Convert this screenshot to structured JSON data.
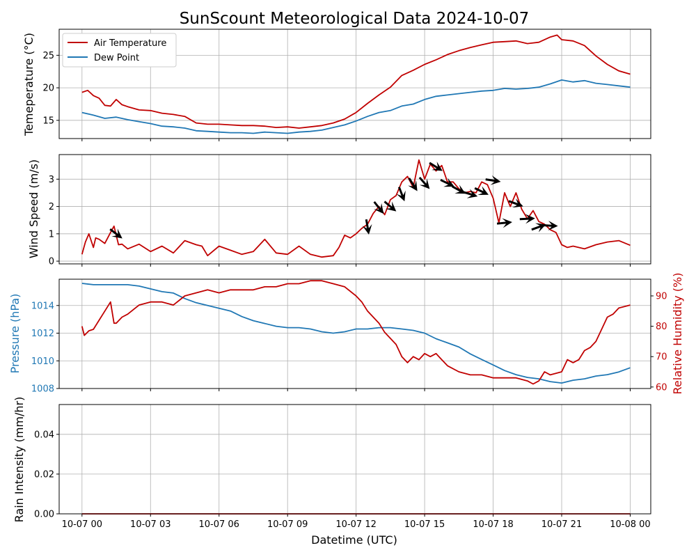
{
  "figure": {
    "title": "SunScount Meteorological Data 2024-10-07",
    "xlabel": "Datetime (UTC)",
    "xtick_labels": [
      "10-07 00",
      "10-07 03",
      "10-07 06",
      "10-07 09",
      "10-07 12",
      "10-07 15",
      "10-07 18",
      "10-07 21",
      "10-08 00"
    ]
  },
  "colors": {
    "air_temp": "#c00000",
    "dew_point": "#1f77b4",
    "wind": "#c00000",
    "pressure": "#1f77b4",
    "humidity": "#c00000",
    "rain": "#c00000",
    "arrow": "#000000",
    "grid": "#b0b0b0"
  },
  "chart_data": [
    {
      "type": "line",
      "ylabel": "Temeperature (°C)",
      "ylim": [
        12.2,
        29
      ],
      "yticks": [
        15,
        20,
        25
      ],
      "grid": true,
      "legend": "upper-left",
      "xlim_hours": [
        -1.0,
        24.9
      ],
      "series": [
        {
          "name": "Air Temperature",
          "x": [
            0,
            0.25,
            0.5,
            0.75,
            1,
            1.25,
            1.5,
            1.75,
            2,
            2.5,
            3,
            3.5,
            4,
            4.5,
            5,
            5.5,
            6,
            6.5,
            7,
            7.5,
            8,
            8.5,
            9,
            9.5,
            10,
            10.5,
            11,
            11.5,
            12,
            12.5,
            13,
            13.5,
            14,
            14.5,
            15,
            15.5,
            16,
            16.5,
            17,
            17.5,
            18,
            18.5,
            19,
            19.5,
            20,
            20.5,
            20.8,
            21,
            21.5,
            22,
            22.5,
            23,
            23.5,
            24
          ],
          "y": [
            19.3,
            19.6,
            18.8,
            18.4,
            17.3,
            17.2,
            18.2,
            17.4,
            17.1,
            16.6,
            16.5,
            16.1,
            15.9,
            15.6,
            14.6,
            14.4,
            14.4,
            14.3,
            14.2,
            14.2,
            14.1,
            13.9,
            14.0,
            13.8,
            14.0,
            14.2,
            14.6,
            15.2,
            16.2,
            17.6,
            18.9,
            20.1,
            21.9,
            22.7,
            23.6,
            24.3,
            25.1,
            25.7,
            26.2,
            26.6,
            27.0,
            27.1,
            27.2,
            26.8,
            27.0,
            27.8,
            28.1,
            27.4,
            27.2,
            26.5,
            24.9,
            23.6,
            22.6,
            22.1
          ]
        },
        {
          "name": "Dew Point",
          "x": [
            0,
            0.5,
            1,
            1.5,
            2,
            2.5,
            3,
            3.5,
            4,
            4.5,
            5,
            5.5,
            6,
            6.5,
            7,
            7.5,
            8,
            8.5,
            9,
            9.5,
            10,
            10.5,
            11,
            11.5,
            12,
            12.5,
            13,
            13.5,
            14,
            14.5,
            15,
            15.5,
            16,
            16.5,
            17,
            17.5,
            18,
            18.5,
            19,
            19.5,
            20,
            20.5,
            21,
            21.5,
            22,
            22.5,
            23,
            23.5,
            24
          ],
          "y": [
            16.2,
            15.8,
            15.3,
            15.5,
            15.1,
            14.8,
            14.5,
            14.1,
            14.0,
            13.8,
            13.4,
            13.3,
            13.2,
            13.1,
            13.1,
            13.0,
            13.2,
            13.1,
            13.0,
            13.2,
            13.3,
            13.5,
            13.9,
            14.3,
            14.9,
            15.6,
            16.2,
            16.5,
            17.2,
            17.5,
            18.2,
            18.7,
            18.9,
            19.1,
            19.3,
            19.5,
            19.6,
            19.9,
            19.8,
            19.9,
            20.1,
            20.6,
            21.2,
            20.9,
            21.1,
            20.7,
            20.5,
            20.3,
            20.1
          ]
        }
      ]
    },
    {
      "type": "line",
      "ylabel": "Wind Speed (m/s)",
      "ylim": [
        -0.1,
        3.9
      ],
      "yticks": [
        0,
        1,
        2,
        3
      ],
      "grid": true,
      "series": [
        {
          "name": "",
          "x": [
            0,
            0.15,
            0.3,
            0.5,
            0.6,
            0.75,
            1,
            1.25,
            1.4,
            1.6,
            1.75,
            2,
            2.5,
            3,
            3.5,
            4,
            4.5,
            5,
            5.25,
            5.5,
            6,
            6.5,
            7,
            7.5,
            8,
            8.5,
            9,
            9.5,
            10,
            10.5,
            11,
            11.25,
            11.5,
            11.75,
            12,
            12.25,
            12.5,
            12.75,
            13,
            13.25,
            13.5,
            13.75,
            14,
            14.25,
            14.5,
            14.75,
            15,
            15.25,
            15.5,
            15.75,
            16,
            16.25,
            16.5,
            16.75,
            17,
            17.25,
            17.5,
            17.75,
            18,
            18.25,
            18.5,
            18.75,
            19,
            19.25,
            19.5,
            19.75,
            20,
            20.25,
            20.5,
            20.75,
            21,
            21.25,
            21.5,
            22,
            22.5,
            23,
            23.5,
            24
          ],
          "y": [
            0.25,
            0.7,
            1.0,
            0.5,
            0.85,
            0.8,
            0.65,
            1.05,
            1.28,
            0.6,
            0.62,
            0.45,
            0.62,
            0.35,
            0.55,
            0.3,
            0.75,
            0.6,
            0.55,
            0.2,
            0.55,
            0.4,
            0.25,
            0.35,
            0.8,
            0.3,
            0.25,
            0.55,
            0.25,
            0.15,
            0.2,
            0.5,
            0.95,
            0.85,
            1.0,
            1.2,
            1.35,
            1.75,
            2.0,
            1.7,
            2.25,
            2.4,
            2.9,
            3.1,
            2.7,
            3.7,
            3.0,
            3.55,
            3.3,
            3.5,
            2.9,
            2.9,
            2.65,
            2.5,
            2.55,
            2.5,
            2.9,
            2.8,
            2.3,
            1.4,
            2.5,
            2.0,
            2.5,
            1.9,
            1.55,
            1.85,
            1.45,
            1.35,
            1.15,
            1.05,
            0.6,
            0.5,
            0.55,
            0.45,
            0.6,
            0.7,
            0.75,
            0.58
          ]
        }
      ],
      "wind_arrows": [
        {
          "x": 1.5,
          "y": 1.0,
          "dir": -0.65
        },
        {
          "x": 12.5,
          "y": 1.25,
          "dir": -1.4
        },
        {
          "x": 13.0,
          "y": 1.95,
          "dir": -0.9
        },
        {
          "x": 13.5,
          "y": 2.0,
          "dir": -0.7
        },
        {
          "x": 14.0,
          "y": 2.45,
          "dir": -1.2
        },
        {
          "x": 14.5,
          "y": 2.8,
          "dir": -1.0
        },
        {
          "x": 15.0,
          "y": 2.85,
          "dir": -0.85
        },
        {
          "x": 15.5,
          "y": 3.45,
          "dir": -0.55
        },
        {
          "x": 16.0,
          "y": 2.85,
          "dir": -0.45
        },
        {
          "x": 16.5,
          "y": 2.6,
          "dir": -0.5
        },
        {
          "x": 17.0,
          "y": 2.45,
          "dir": -0.3
        },
        {
          "x": 17.5,
          "y": 2.55,
          "dir": -0.45
        },
        {
          "x": 18.0,
          "y": 2.95,
          "dir": -0.15
        },
        {
          "x": 18.5,
          "y": 1.4,
          "dir": 0.1
        },
        {
          "x": 19.0,
          "y": 2.1,
          "dir": -0.35
        },
        {
          "x": 19.5,
          "y": 1.55,
          "dir": 0.05
        },
        {
          "x": 20.0,
          "y": 1.25,
          "dir": 0.35
        },
        {
          "x": 20.5,
          "y": 1.3,
          "dir": -0.05
        }
      ]
    },
    {
      "type": "line",
      "ylabel": "Pressure (hPa)",
      "ylabel_right": "Relative Humidity (%)",
      "ylim": [
        1008,
        1015.9
      ],
      "yticks": [
        1008,
        1010,
        1012,
        1014
      ],
      "ylim_right": [
        59.5,
        95.5
      ],
      "yticks_right": [
        60,
        70,
        80,
        90
      ],
      "grid": true,
      "series": [
        {
          "name": "",
          "axis": "left",
          "x": [
            0,
            0.5,
            1,
            1.5,
            2,
            2.5,
            3,
            3.5,
            4,
            4.5,
            5,
            5.5,
            6,
            6.5,
            7,
            7.5,
            8,
            8.5,
            9,
            9.5,
            10,
            10.5,
            11,
            11.5,
            12,
            12.5,
            13,
            13.5,
            14,
            14.5,
            15,
            15.5,
            16,
            16.5,
            17,
            17.5,
            18,
            18.5,
            19,
            19.5,
            20,
            20.5,
            21,
            21.5,
            22,
            22.5,
            23,
            23.5,
            24
          ],
          "y": [
            1015.6,
            1015.5,
            1015.5,
            1015.5,
            1015.5,
            1015.4,
            1015.2,
            1015.0,
            1014.9,
            1014.5,
            1014.2,
            1014.0,
            1013.8,
            1013.6,
            1013.2,
            1012.9,
            1012.7,
            1012.5,
            1012.4,
            1012.4,
            1012.3,
            1012.1,
            1012.0,
            1012.1,
            1012.3,
            1012.3,
            1012.4,
            1012.4,
            1012.3,
            1012.2,
            1012.0,
            1011.6,
            1011.3,
            1011.0,
            1010.5,
            1010.1,
            1009.7,
            1009.3,
            1009.0,
            1008.8,
            1008.7,
            1008.5,
            1008.4,
            1008.6,
            1008.7,
            1008.9,
            1009.0,
            1009.2,
            1009.5
          ]
        },
        {
          "name": "",
          "axis": "right",
          "x": [
            0,
            0.1,
            0.3,
            0.5,
            0.75,
            1,
            1.25,
            1.4,
            1.5,
            1.75,
            2,
            2.5,
            3,
            3.5,
            4,
            4.5,
            5,
            5.5,
            6,
            6.5,
            7,
            7.5,
            8,
            8.5,
            9,
            9.5,
            10,
            10.5,
            11,
            11.5,
            12,
            12.25,
            12.5,
            12.75,
            13,
            13.25,
            13.5,
            13.75,
            14,
            14.25,
            14.5,
            14.75,
            15,
            15.25,
            15.5,
            15.75,
            16,
            16.5,
            17,
            17.5,
            18,
            18.5,
            19,
            19.5,
            19.75,
            20,
            20.25,
            20.5,
            21,
            21.25,
            21.5,
            21.75,
            22,
            22.25,
            22.5,
            22.75,
            23,
            23.25,
            23.5,
            24
          ],
          "y": [
            80,
            77,
            78.5,
            79,
            82,
            85,
            88,
            81,
            81,
            83,
            84,
            87,
            88,
            88,
            87,
            90,
            91,
            92,
            91,
            92,
            92,
            92,
            93,
            93,
            94,
            94,
            95,
            95,
            94,
            93,
            90,
            88,
            85,
            83,
            81,
            78,
            76,
            74,
            70,
            68,
            70,
            69,
            71,
            70,
            71,
            69,
            67,
            65,
            64,
            64,
            63,
            63,
            63,
            62,
            61,
            62,
            65,
            64,
            65,
            69,
            68,
            69,
            72,
            73,
            75,
            79,
            83,
            84,
            86,
            87
          ]
        },
        {
          "name": "",
          "axis": "right",
          "x": [],
          "y": []
        }
      ]
    },
    {
      "type": "line",
      "ylabel": "Rain Intensity (mm/hr)",
      "ylim": [
        0,
        0.055
      ],
      "yticks": [
        0.0,
        0.02,
        0.04
      ],
      "ytick_labels": [
        "0.00",
        "0.02",
        "0.04"
      ],
      "grid": true,
      "series": [
        {
          "name": "",
          "x": [
            0,
            24
          ],
          "y": [
            0,
            0
          ]
        }
      ]
    }
  ]
}
